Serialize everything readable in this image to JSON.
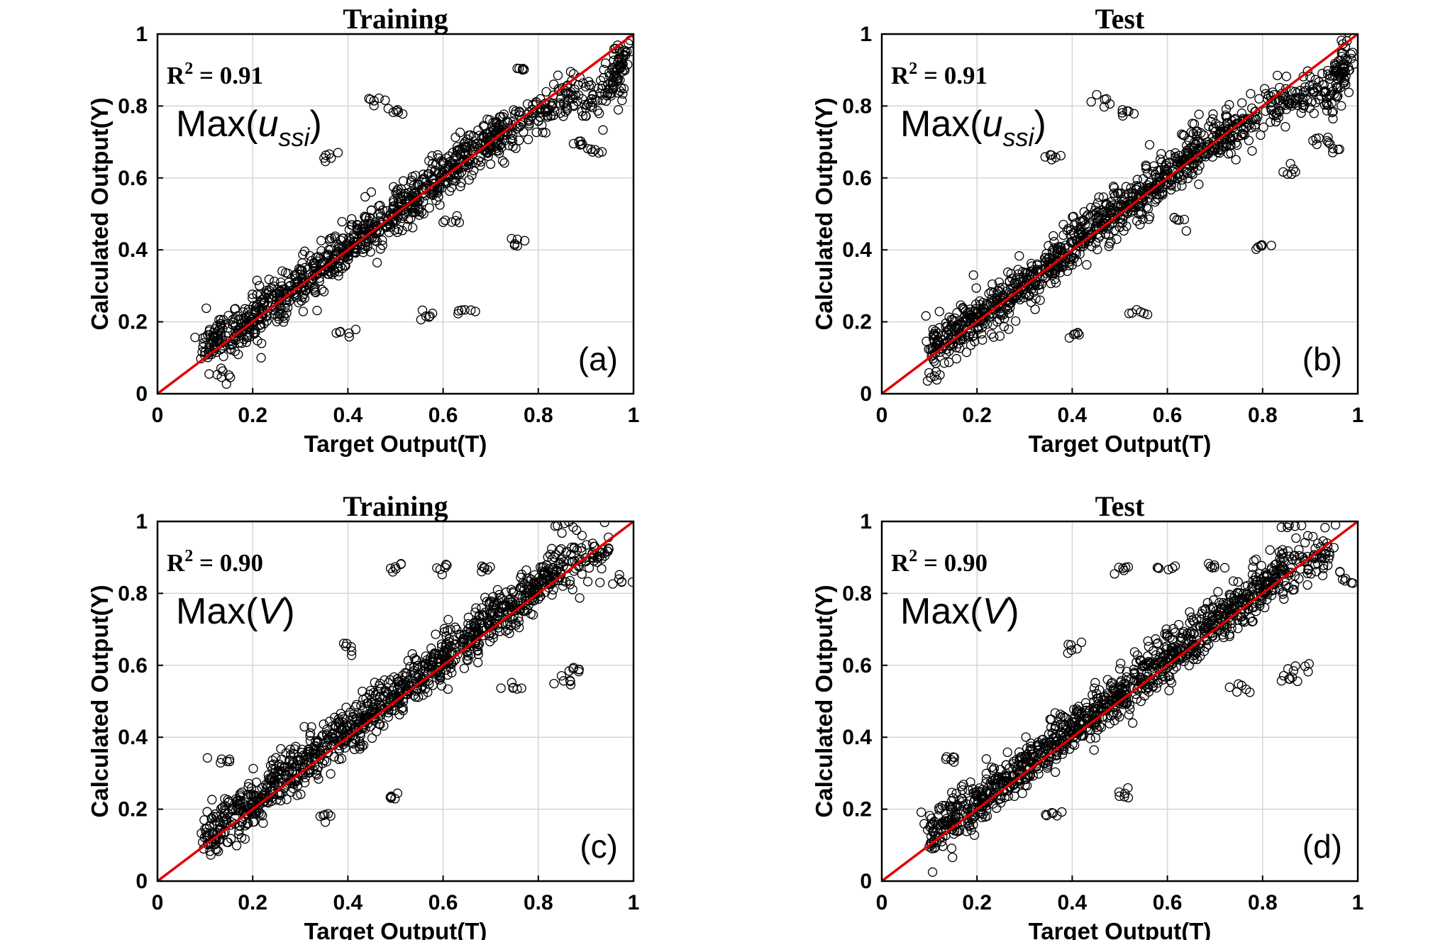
{
  "figure": {
    "common": {
      "xlabel": "Target Output(T)",
      "ylabel": "Calculated Output(Y)",
      "ticks": [
        "0",
        "0.2",
        "0.4",
        "0.6",
        "0.8",
        "1"
      ]
    },
    "colors": {
      "marker": "#000000",
      "fit_line": "#e00000",
      "grid": "#d4d4d4"
    }
  },
  "chart_data": [
    {
      "type": "scatter",
      "title": "Training",
      "r2_label": "R",
      "r2_sup": "2",
      "r2_value": " = 0.91",
      "variable_label": {
        "prefix": "Max(",
        "symbol": "u",
        "subscript": "ssi",
        "suffix": ")"
      },
      "panel_label": "(a)",
      "xlabel": "Target Output(T)",
      "ylabel": "Calculated Output(Y)",
      "xlim": [
        0,
        1
      ],
      "ylim": [
        0,
        1
      ],
      "grid": true,
      "marker": "open-circle",
      "fit_line": {
        "x": [
          0,
          1
        ],
        "y": [
          0,
          1
        ]
      },
      "point_clusters": [
        {
          "x": 0.1,
          "y": 0.13
        },
        {
          "x": 0.15,
          "y": 0.17
        },
        {
          "x": 0.2,
          "y": 0.21
        },
        {
          "x": 0.25,
          "y": 0.25
        },
        {
          "x": 0.3,
          "y": 0.31
        },
        {
          "x": 0.35,
          "y": 0.35
        },
        {
          "x": 0.4,
          "y": 0.41
        },
        {
          "x": 0.45,
          "y": 0.46
        },
        {
          "x": 0.5,
          "y": 0.51
        },
        {
          "x": 0.55,
          "y": 0.55
        },
        {
          "x": 0.6,
          "y": 0.61
        },
        {
          "x": 0.65,
          "y": 0.66
        },
        {
          "x": 0.7,
          "y": 0.71
        },
        {
          "x": 0.75,
          "y": 0.74
        },
        {
          "x": 0.85,
          "y": 0.82
        },
        {
          "x": 0.95,
          "y": 0.84
        },
        {
          "x": 0.98,
          "y": 0.95
        }
      ],
      "outliers": [
        {
          "x": 0.46,
          "y": 0.82
        },
        {
          "x": 0.5,
          "y": 0.78
        },
        {
          "x": 0.76,
          "y": 0.9
        },
        {
          "x": 0.75,
          "y": 0.42
        },
        {
          "x": 0.62,
          "y": 0.48
        },
        {
          "x": 0.65,
          "y": 0.23
        },
        {
          "x": 0.57,
          "y": 0.22
        },
        {
          "x": 0.4,
          "y": 0.17
        },
        {
          "x": 0.36,
          "y": 0.66
        },
        {
          "x": 0.88,
          "y": 0.7
        },
        {
          "x": 0.92,
          "y": 0.68
        },
        {
          "x": 0.12,
          "y": 0.05
        }
      ]
    },
    {
      "type": "scatter",
      "title": "Test",
      "r2_label": "R",
      "r2_sup": "2",
      "r2_value": " = 0.91",
      "variable_label": {
        "prefix": "Max(",
        "symbol": "u",
        "subscript": "ssi",
        "suffix": ")"
      },
      "panel_label": "(b)",
      "xlabel": "Target Output(T)",
      "ylabel": "Calculated Output(Y)",
      "xlim": [
        0,
        1
      ],
      "ylim": [
        0,
        1
      ],
      "grid": true,
      "marker": "open-circle",
      "fit_line": {
        "x": [
          0,
          1
        ],
        "y": [
          0,
          1
        ]
      },
      "point_clusters": [
        {
          "x": 0.1,
          "y": 0.13
        },
        {
          "x": 0.15,
          "y": 0.17
        },
        {
          "x": 0.2,
          "y": 0.21
        },
        {
          "x": 0.25,
          "y": 0.25
        },
        {
          "x": 0.3,
          "y": 0.31
        },
        {
          "x": 0.35,
          "y": 0.35
        },
        {
          "x": 0.4,
          "y": 0.41
        },
        {
          "x": 0.45,
          "y": 0.46
        },
        {
          "x": 0.5,
          "y": 0.51
        },
        {
          "x": 0.55,
          "y": 0.55
        },
        {
          "x": 0.6,
          "y": 0.61
        },
        {
          "x": 0.65,
          "y": 0.66
        },
        {
          "x": 0.7,
          "y": 0.71
        },
        {
          "x": 0.75,
          "y": 0.74
        },
        {
          "x": 0.85,
          "y": 0.82
        },
        {
          "x": 0.95,
          "y": 0.84
        },
        {
          "x": 0.98,
          "y": 0.95
        }
      ],
      "outliers": [
        {
          "x": 0.47,
          "y": 0.82
        },
        {
          "x": 0.52,
          "y": 0.78
        },
        {
          "x": 0.8,
          "y": 0.41
        },
        {
          "x": 0.62,
          "y": 0.48
        },
        {
          "x": 0.54,
          "y": 0.22
        },
        {
          "x": 0.4,
          "y": 0.17
        },
        {
          "x": 0.36,
          "y": 0.66
        },
        {
          "x": 0.92,
          "y": 0.7
        },
        {
          "x": 0.95,
          "y": 0.68
        },
        {
          "x": 0.12,
          "y": 0.05
        },
        {
          "x": 0.85,
          "y": 0.62
        }
      ]
    },
    {
      "type": "scatter",
      "title": "Training",
      "r2_label": "R",
      "r2_sup": "2",
      "r2_value": " = 0.90",
      "variable_label": {
        "prefix": "Max(",
        "symbol": "V",
        "subscript": "",
        "suffix": ")"
      },
      "panel_label": "(c)",
      "xlabel": "Target Output(T)",
      "ylabel": "Calculated Output(Y)",
      "xlim": [
        0,
        1
      ],
      "ylim": [
        0,
        1
      ],
      "grid": true,
      "marker": "open-circle",
      "fit_line": {
        "x": [
          0,
          1
        ],
        "y": [
          0,
          1
        ]
      },
      "point_clusters": [
        {
          "x": 0.1,
          "y": 0.12
        },
        {
          "x": 0.15,
          "y": 0.17
        },
        {
          "x": 0.2,
          "y": 0.22
        },
        {
          "x": 0.25,
          "y": 0.27
        },
        {
          "x": 0.3,
          "y": 0.32
        },
        {
          "x": 0.35,
          "y": 0.37
        },
        {
          "x": 0.4,
          "y": 0.42
        },
        {
          "x": 0.45,
          "y": 0.47
        },
        {
          "x": 0.5,
          "y": 0.52
        },
        {
          "x": 0.55,
          "y": 0.57
        },
        {
          "x": 0.6,
          "y": 0.62
        },
        {
          "x": 0.65,
          "y": 0.67
        },
        {
          "x": 0.7,
          "y": 0.72
        },
        {
          "x": 0.75,
          "y": 0.77
        },
        {
          "x": 0.8,
          "y": 0.82
        },
        {
          "x": 0.85,
          "y": 0.87
        },
        {
          "x": 0.95,
          "y": 0.92
        }
      ],
      "outliers": [
        {
          "x": 0.14,
          "y": 0.34
        },
        {
          "x": 0.5,
          "y": 0.87
        },
        {
          "x": 0.6,
          "y": 0.87
        },
        {
          "x": 0.7,
          "y": 0.87
        },
        {
          "x": 0.86,
          "y": 0.99
        },
        {
          "x": 0.86,
          "y": 0.56
        },
        {
          "x": 0.88,
          "y": 0.59
        },
        {
          "x": 0.75,
          "y": 0.54
        },
        {
          "x": 0.5,
          "y": 0.24
        },
        {
          "x": 0.35,
          "y": 0.18
        },
        {
          "x": 0.4,
          "y": 0.65
        },
        {
          "x": 0.98,
          "y": 0.84
        }
      ]
    },
    {
      "type": "scatter",
      "title": "Test",
      "r2_label": "R",
      "r2_sup": "2",
      "r2_value": " = 0.90",
      "variable_label": {
        "prefix": "Max(",
        "symbol": "V",
        "subscript": "",
        "suffix": ")"
      },
      "panel_label": "(d)",
      "xlabel": "Target Output(T)",
      "ylabel": "Calculated Output(Y)",
      "xlim": [
        0,
        1
      ],
      "ylim": [
        0,
        1
      ],
      "grid": true,
      "marker": "open-circle",
      "fit_line": {
        "x": [
          0,
          1
        ],
        "y": [
          0,
          1
        ]
      },
      "point_clusters": [
        {
          "x": 0.1,
          "y": 0.12
        },
        {
          "x": 0.15,
          "y": 0.17
        },
        {
          "x": 0.2,
          "y": 0.22
        },
        {
          "x": 0.25,
          "y": 0.27
        },
        {
          "x": 0.3,
          "y": 0.32
        },
        {
          "x": 0.35,
          "y": 0.37
        },
        {
          "x": 0.4,
          "y": 0.42
        },
        {
          "x": 0.45,
          "y": 0.47
        },
        {
          "x": 0.5,
          "y": 0.52
        },
        {
          "x": 0.55,
          "y": 0.57
        },
        {
          "x": 0.6,
          "y": 0.62
        },
        {
          "x": 0.65,
          "y": 0.67
        },
        {
          "x": 0.7,
          "y": 0.72
        },
        {
          "x": 0.75,
          "y": 0.77
        },
        {
          "x": 0.8,
          "y": 0.82
        },
        {
          "x": 0.85,
          "y": 0.87
        },
        {
          "x": 0.95,
          "y": 0.92
        }
      ],
      "outliers": [
        {
          "x": 0.14,
          "y": 0.34
        },
        {
          "x": 0.5,
          "y": 0.87
        },
        {
          "x": 0.6,
          "y": 0.87
        },
        {
          "x": 0.7,
          "y": 0.87
        },
        {
          "x": 0.86,
          "y": 0.99
        },
        {
          "x": 0.86,
          "y": 0.56
        },
        {
          "x": 0.88,
          "y": 0.59
        },
        {
          "x": 0.75,
          "y": 0.54
        },
        {
          "x": 0.5,
          "y": 0.24
        },
        {
          "x": 0.35,
          "y": 0.18
        },
        {
          "x": 0.4,
          "y": 0.65
        },
        {
          "x": 0.98,
          "y": 0.84
        }
      ]
    }
  ]
}
